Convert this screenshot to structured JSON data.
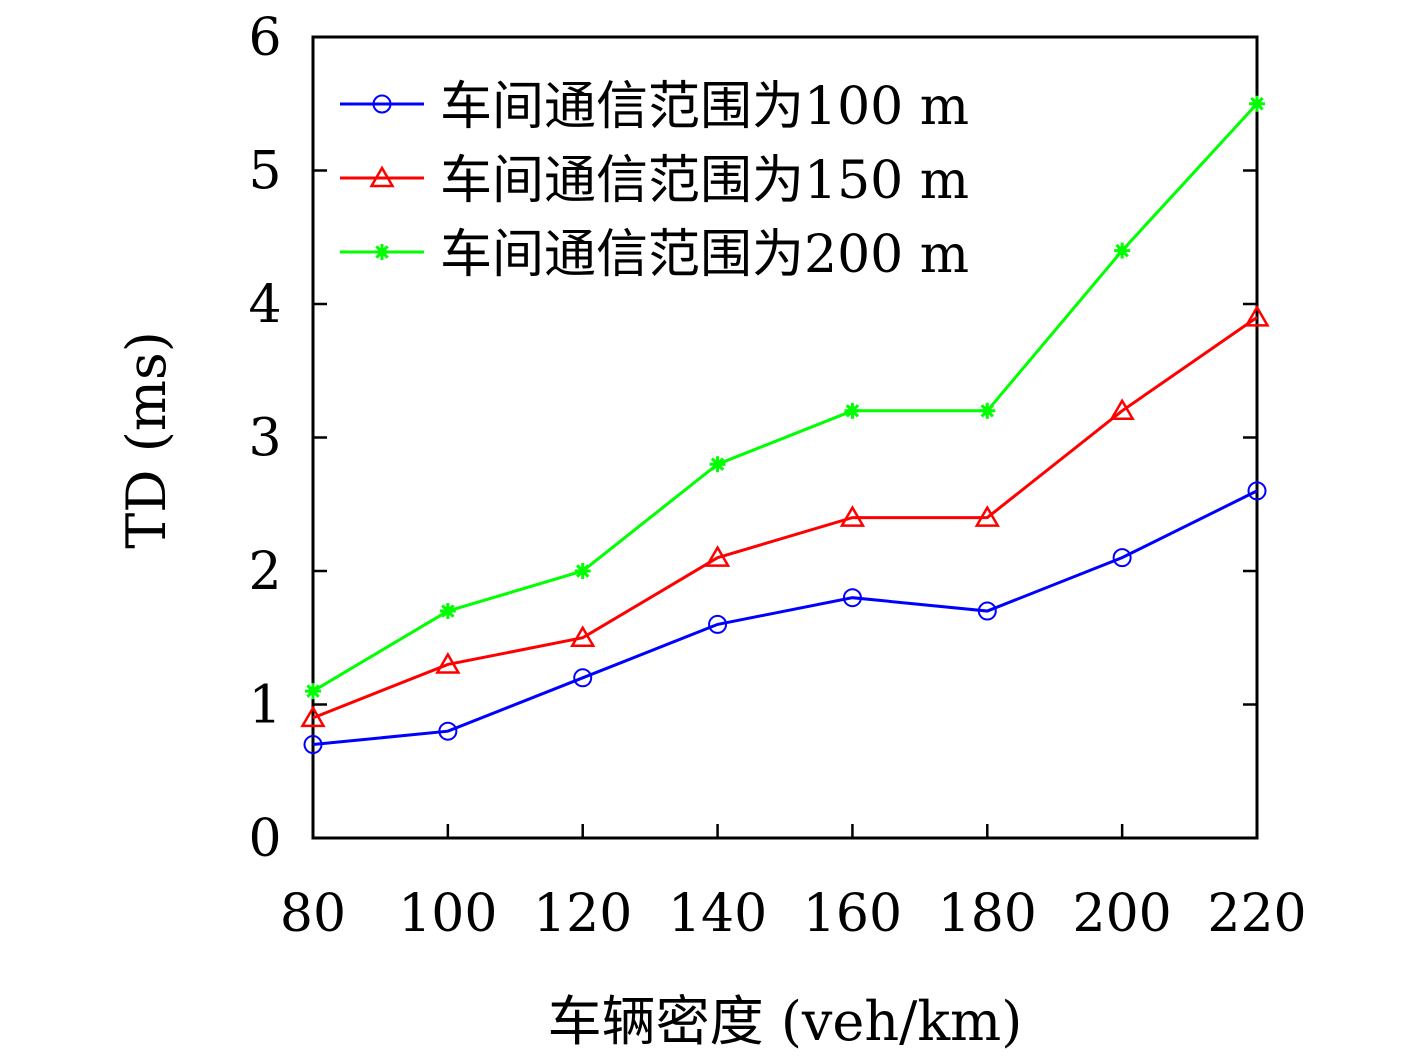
{
  "chart_data": {
    "type": "line",
    "xlabel": "车辆密度 (veh/km)",
    "ylabel": "TD (ms)",
    "x": [
      80,
      100,
      120,
      140,
      160,
      180,
      200,
      220
    ],
    "xticks": [
      "80",
      "100",
      "120",
      "140",
      "160",
      "180",
      "200",
      "220"
    ],
    "yticks": [
      "0",
      "1",
      "2",
      "3",
      "4",
      "5",
      "6"
    ],
    "xlim": [
      80,
      220
    ],
    "ylim": [
      0,
      6
    ],
    "grid": false,
    "legend_position": "top-left",
    "series": [
      {
        "name": "车间通信范围为100 m",
        "color": "#0000ff",
        "marker": "circle",
        "values": [
          0.7,
          0.8,
          1.2,
          1.6,
          1.8,
          1.7,
          2.1,
          2.6
        ]
      },
      {
        "name": "车间通信范围为150 m",
        "color": "#ff0000",
        "marker": "triangle",
        "values": [
          0.9,
          1.3,
          1.5,
          2.1,
          2.4,
          2.4,
          3.2,
          3.9
        ]
      },
      {
        "name": "车间通信范围为200 m",
        "color": "#00ff00",
        "marker": "star",
        "values": [
          1.1,
          1.7,
          2.0,
          2.8,
          3.2,
          3.2,
          4.4,
          5.5
        ]
      }
    ]
  }
}
